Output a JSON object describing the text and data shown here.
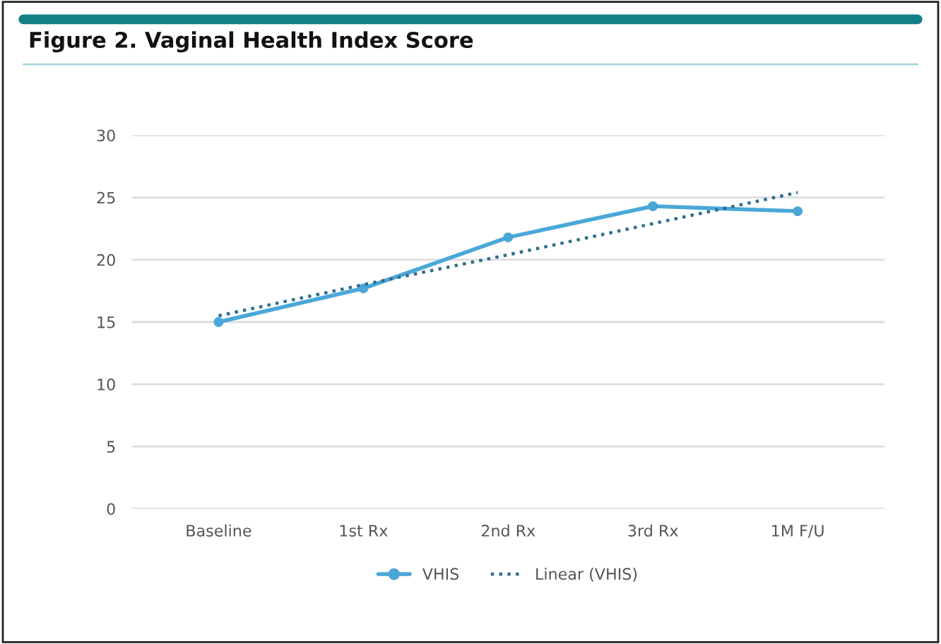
{
  "chart_data": {
    "type": "line",
    "title": "Figure 2. Vaginal Health Index Score",
    "categories": [
      "Baseline",
      "1st Rx",
      "2nd Rx",
      "3rd Rx",
      "1M F/U"
    ],
    "series": [
      {
        "name": "VHIS",
        "color": "#4aa8d8",
        "values": [
          15.0,
          17.7,
          21.8,
          24.3,
          23.9
        ],
        "marker": "circle",
        "line_style": "solid"
      },
      {
        "name": "Linear (VHIS)",
        "color": "#2e6e8e",
        "values": [
          15.5,
          18.0,
          20.4,
          22.9,
          25.4
        ],
        "marker": "none",
        "line_style": "dotted"
      }
    ],
    "ylim": [
      0,
      30
    ],
    "yticks": [
      0,
      5,
      10,
      15,
      20,
      25,
      30
    ],
    "grid": "y",
    "legend": "bottom"
  }
}
